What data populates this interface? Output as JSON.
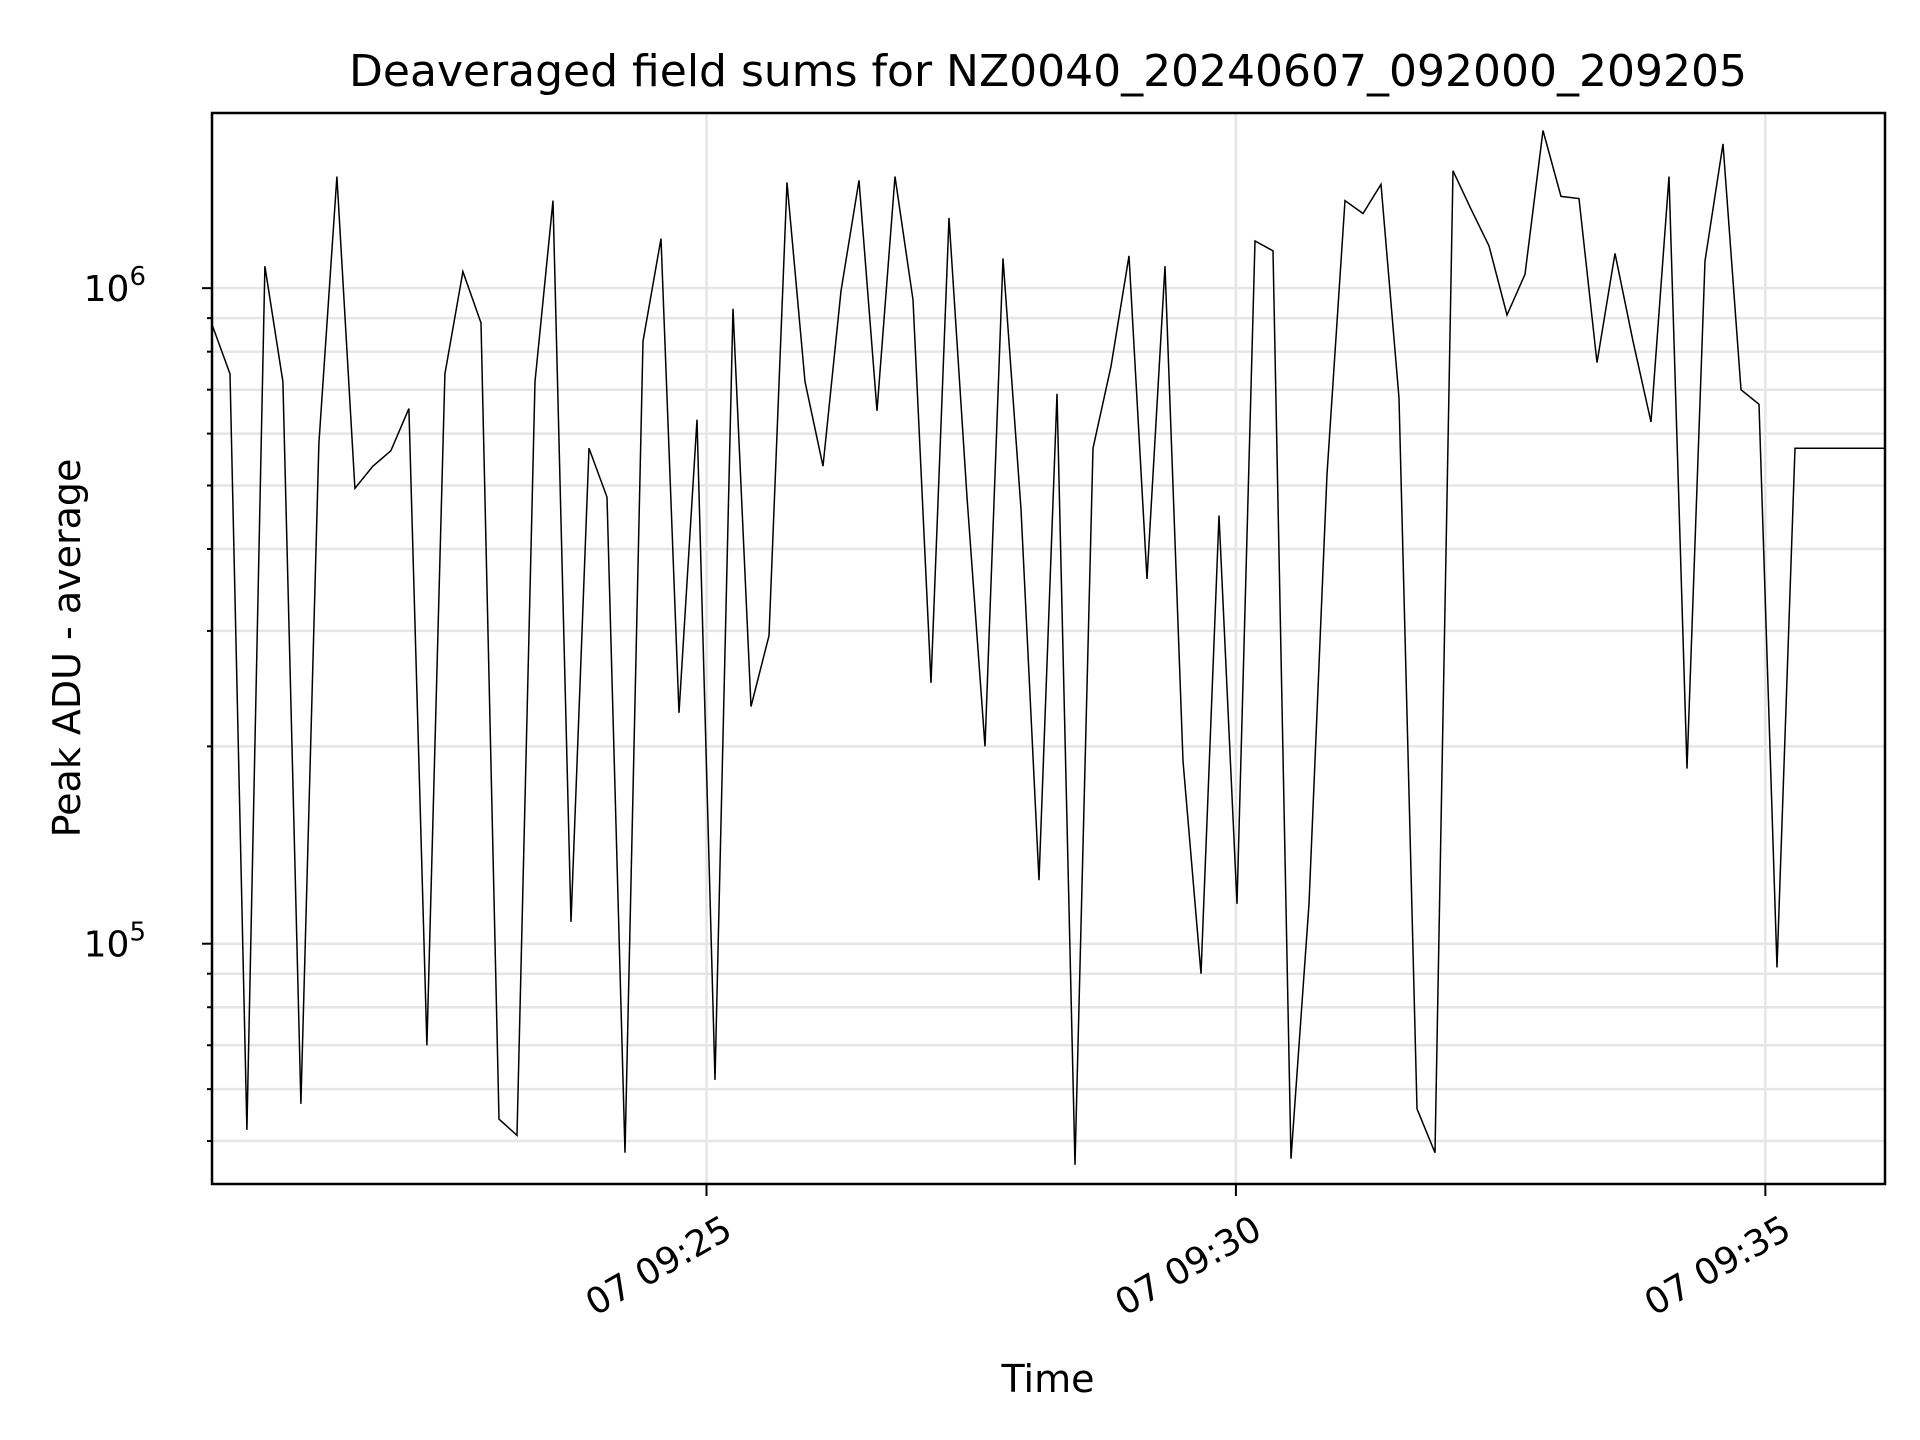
{
  "chart_data": {
    "type": "line",
    "title": "Deaveraged field sums for NZ0040_20240607_092000_209205",
    "xlabel": "Time",
    "ylabel": "Peak ADU - average",
    "yscale": "log",
    "xlim_minutes": [
      0,
      15.8
    ],
    "ylim": [
      43000,
      1850000
    ],
    "x_ticks": [
      {
        "label": "07 09:25",
        "value": 4.67
      },
      {
        "label": "07 09:30",
        "value": 9.67
      },
      {
        "label": "07 09:35",
        "value": 14.67
      }
    ],
    "y_ticks": [
      {
        "base": "10",
        "exp": "5",
        "value": 100000
      },
      {
        "base": "10",
        "exp": "6",
        "value": 1000000
      }
    ],
    "grid": true,
    "series": [
      {
        "color": "#000000",
        "values": [
          [
            0.0,
            880000
          ],
          [
            0.17,
            740000
          ],
          [
            0.33,
            52000
          ],
          [
            0.5,
            1080000
          ],
          [
            0.67,
            720000
          ],
          [
            0.84,
            57000
          ],
          [
            1.01,
            580000
          ],
          [
            1.18,
            1480000
          ],
          [
            1.35,
            495000
          ],
          [
            1.52,
            535000
          ],
          [
            1.69,
            565000
          ],
          [
            1.86,
            655000
          ],
          [
            2.03,
            70000
          ],
          [
            2.2,
            740000
          ],
          [
            2.37,
            1060000
          ],
          [
            2.54,
            885000
          ],
          [
            2.71,
            54000
          ],
          [
            2.88,
            51000
          ],
          [
            3.05,
            720000
          ],
          [
            3.22,
            1360000
          ],
          [
            3.39,
            108000
          ],
          [
            3.56,
            570000
          ],
          [
            3.73,
            480000
          ],
          [
            3.9,
            48000
          ],
          [
            4.07,
            830000
          ],
          [
            4.24,
            1190000
          ],
          [
            4.41,
            225000
          ],
          [
            4.58,
            630000
          ],
          [
            4.75,
            62000
          ],
          [
            4.92,
            930000
          ],
          [
            5.09,
            230000
          ],
          [
            5.26,
            295000
          ],
          [
            5.43,
            1450000
          ],
          [
            5.6,
            720000
          ],
          [
            5.77,
            535000
          ],
          [
            5.94,
            990000
          ],
          [
            6.11,
            1460000
          ],
          [
            6.28,
            650000
          ],
          [
            6.45,
            1480000
          ],
          [
            6.62,
            960000
          ],
          [
            6.79,
            250000
          ],
          [
            6.96,
            1280000
          ],
          [
            7.13,
            480000
          ],
          [
            7.3,
            200000
          ],
          [
            7.47,
            1110000
          ],
          [
            7.64,
            460000
          ],
          [
            7.81,
            125000
          ],
          [
            7.98,
            690000
          ],
          [
            8.15,
            46000
          ],
          [
            8.32,
            570000
          ],
          [
            8.49,
            760000
          ],
          [
            8.66,
            1120000
          ],
          [
            8.83,
            360000
          ],
          [
            9.0,
            1080000
          ],
          [
            9.17,
            190000
          ],
          [
            9.34,
            90000
          ],
          [
            9.51,
            450000
          ],
          [
            9.68,
            115000
          ],
          [
            9.85,
            1180000
          ],
          [
            10.02,
            1140000
          ],
          [
            10.19,
            47000
          ],
          [
            10.36,
            115000
          ],
          [
            10.53,
            520000
          ],
          [
            10.7,
            1360000
          ],
          [
            10.87,
            1300000
          ],
          [
            11.04,
            1440000
          ],
          [
            11.21,
            680000
          ],
          [
            11.38,
            56000
          ],
          [
            11.55,
            48000
          ],
          [
            11.72,
            1510000
          ],
          [
            11.89,
            1320000
          ],
          [
            12.06,
            1160000
          ],
          [
            12.23,
            910000
          ],
          [
            12.4,
            1050000
          ],
          [
            12.57,
            1740000
          ],
          [
            12.74,
            1380000
          ],
          [
            12.91,
            1370000
          ],
          [
            13.08,
            770000
          ],
          [
            13.25,
            1130000
          ],
          [
            13.42,
            830000
          ],
          [
            13.59,
            625000
          ],
          [
            13.76,
            1480000
          ],
          [
            13.93,
            185000
          ],
          [
            14.1,
            1100000
          ],
          [
            14.27,
            1660000
          ],
          [
            14.44,
            700000
          ],
          [
            14.61,
            665000
          ],
          [
            14.78,
            92000
          ],
          [
            14.95,
            570000
          ],
          [
            15.8,
            570000
          ]
        ]
      }
    ]
  }
}
